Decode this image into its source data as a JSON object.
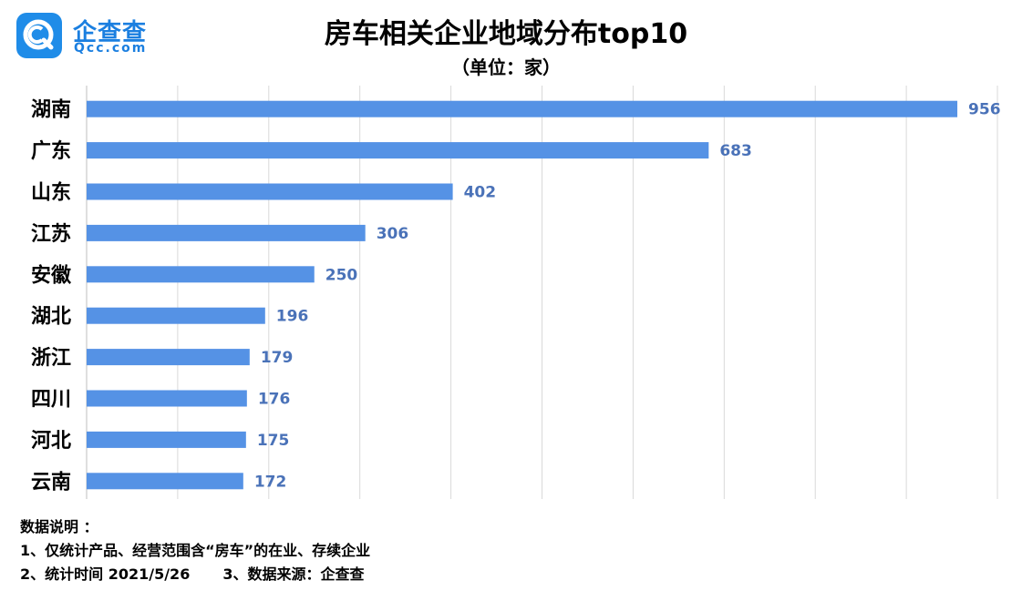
{
  "header": {
    "logo_cn": "企查查",
    "logo_en": "Qcc.com",
    "title": "房车相关企业地域分布top10",
    "subtitle": "（单位：家）"
  },
  "colors": {
    "bar": "#5592e5",
    "value_label": "#4a72b8",
    "grid": "#d9d9d9",
    "logo": "#1f8ce8"
  },
  "chart_data": {
    "type": "bar",
    "orientation": "horizontal",
    "categories": [
      "湖南",
      "广东",
      "山东",
      "江苏",
      "安徽",
      "湖北",
      "浙江",
      "四川",
      "河北",
      "云南"
    ],
    "values": [
      956,
      683,
      402,
      306,
      250,
      196,
      179,
      176,
      175,
      172
    ],
    "xlim": [
      0,
      1000
    ],
    "grid": true,
    "data_labels": true
  },
  "notes": {
    "heading": "数据说明 ：",
    "line1": "1、仅统计产品、经营范围含“房车”的在业、存续企业",
    "line2a": "2、统计时间 2021/5/26",
    "line2b": "3、数据来源：企查查"
  }
}
